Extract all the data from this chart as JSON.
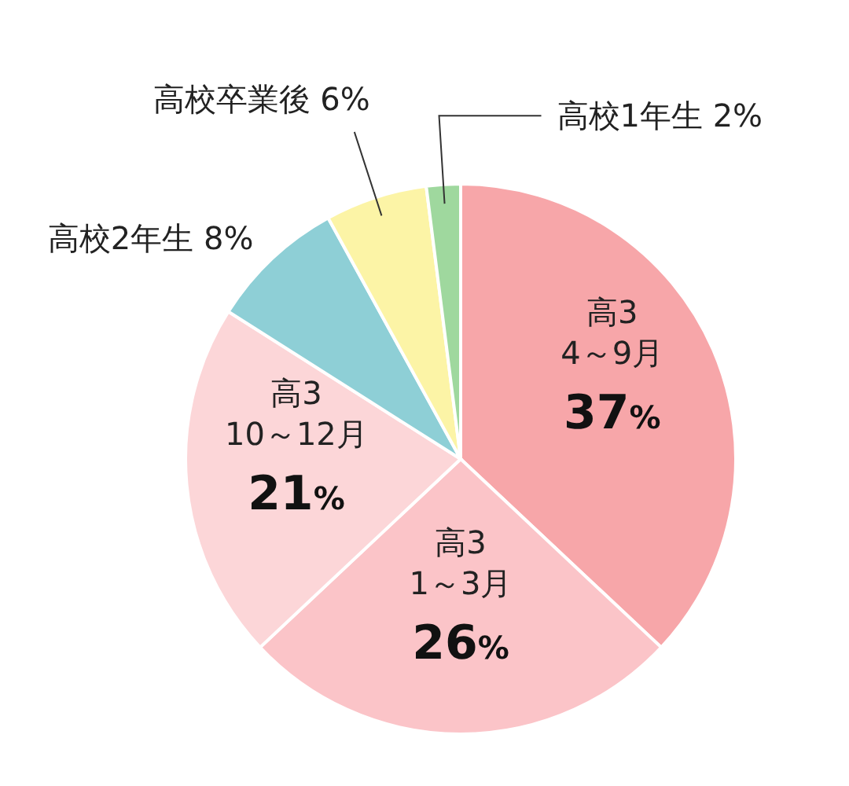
{
  "chart_data": {
    "type": "pie",
    "categories": [
      "高3 4～9月",
      "高3 1～3月",
      "高3 10～12月",
      "高校2年生",
      "高校卒業後",
      "高校1年生"
    ],
    "values": [
      37,
      26,
      21,
      8,
      6,
      2
    ],
    "value_labels": [
      "37%",
      "26%",
      "21%",
      "8%",
      "6%",
      "2%"
    ],
    "colors": [
      "#f7a6a9",
      "#fbc4c8",
      "#fcd6d8",
      "#8ecfd6",
      "#fcf4a6",
      "#9fd89e"
    ]
  }
}
